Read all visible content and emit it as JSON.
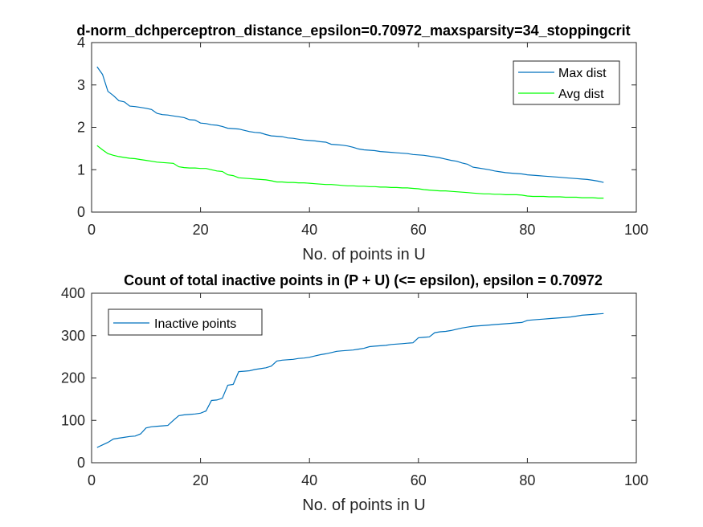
{
  "colors": {
    "max_dist": "#0072BD",
    "avg_dist": "#00FF00",
    "inactive": "#0072BD"
  },
  "chart_data": [
    {
      "type": "line",
      "title": "d-norm_dchperceptron_distance_epsilon=0.70972_maxsparsity=34_stoppingcrit",
      "xlabel": "No. of points in U",
      "ylabel": "",
      "xlim": [
        0,
        100
      ],
      "ylim": [
        0,
        4
      ],
      "xticks": [
        "0",
        "20",
        "40",
        "60",
        "80",
        "100"
      ],
      "yticks": [
        "0",
        "1",
        "2",
        "3",
        "4"
      ],
      "grid": false,
      "legend_position": "top-right",
      "x": [
        1,
        2,
        3,
        4,
        5,
        6,
        7,
        8,
        9,
        10,
        11,
        12,
        13,
        14,
        15,
        16,
        17,
        18,
        19,
        20,
        21,
        22,
        23,
        24,
        25,
        26,
        27,
        28,
        29,
        30,
        31,
        32,
        33,
        34,
        35,
        36,
        37,
        38,
        39,
        40,
        41,
        42,
        43,
        44,
        45,
        46,
        47,
        48,
        49,
        50,
        51,
        52,
        53,
        54,
        55,
        56,
        57,
        58,
        59,
        60,
        61,
        62,
        63,
        64,
        65,
        66,
        67,
        68,
        69,
        70,
        71,
        72,
        73,
        74,
        75,
        76,
        77,
        78,
        79,
        80,
        81,
        82,
        83,
        84,
        85,
        86,
        87,
        88,
        89,
        90,
        91,
        92,
        93,
        94
      ],
      "series": [
        {
          "name": "Max dist",
          "values": [
            3.43,
            3.25,
            2.85,
            2.75,
            2.63,
            2.6,
            2.5,
            2.49,
            2.47,
            2.45,
            2.42,
            2.33,
            2.3,
            2.29,
            2.27,
            2.25,
            2.23,
            2.18,
            2.17,
            2.1,
            2.09,
            2.06,
            2.05,
            2.02,
            1.98,
            1.97,
            1.96,
            1.93,
            1.9,
            1.88,
            1.87,
            1.83,
            1.8,
            1.79,
            1.78,
            1.75,
            1.74,
            1.72,
            1.7,
            1.69,
            1.68,
            1.66,
            1.65,
            1.6,
            1.59,
            1.58,
            1.56,
            1.53,
            1.49,
            1.47,
            1.46,
            1.45,
            1.43,
            1.42,
            1.41,
            1.4,
            1.39,
            1.38,
            1.36,
            1.35,
            1.34,
            1.32,
            1.3,
            1.28,
            1.25,
            1.22,
            1.2,
            1.16,
            1.13,
            1.06,
            1.04,
            1.02,
            1.0,
            0.97,
            0.95,
            0.93,
            0.92,
            0.91,
            0.9,
            0.88,
            0.87,
            0.86,
            0.85,
            0.84,
            0.83,
            0.82,
            0.81,
            0.8,
            0.79,
            0.78,
            0.77,
            0.75,
            0.73,
            0.7
          ]
        },
        {
          "name": "Avg dist",
          "values": [
            1.57,
            1.47,
            1.38,
            1.34,
            1.31,
            1.29,
            1.27,
            1.26,
            1.24,
            1.22,
            1.2,
            1.18,
            1.17,
            1.16,
            1.15,
            1.07,
            1.05,
            1.04,
            1.04,
            1.03,
            1.03,
            1.0,
            0.97,
            0.96,
            0.88,
            0.86,
            0.81,
            0.8,
            0.79,
            0.78,
            0.77,
            0.76,
            0.74,
            0.71,
            0.71,
            0.7,
            0.7,
            0.69,
            0.69,
            0.68,
            0.67,
            0.66,
            0.65,
            0.65,
            0.64,
            0.63,
            0.62,
            0.62,
            0.61,
            0.61,
            0.6,
            0.6,
            0.59,
            0.59,
            0.58,
            0.58,
            0.57,
            0.57,
            0.56,
            0.55,
            0.53,
            0.52,
            0.51,
            0.5,
            0.5,
            0.49,
            0.48,
            0.47,
            0.46,
            0.45,
            0.44,
            0.43,
            0.43,
            0.42,
            0.42,
            0.41,
            0.41,
            0.41,
            0.4,
            0.38,
            0.37,
            0.37,
            0.37,
            0.36,
            0.36,
            0.36,
            0.35,
            0.35,
            0.35,
            0.34,
            0.34,
            0.34,
            0.33,
            0.33
          ]
        }
      ]
    },
    {
      "type": "line",
      "title": "Count of total inactive points in (P + U) (<= epsilon), epsilon = 0.70972",
      "xlabel": "No. of points in U",
      "ylabel": "",
      "xlim": [
        0,
        100
      ],
      "ylim": [
        0,
        400
      ],
      "xticks": [
        "0",
        "20",
        "40",
        "60",
        "80",
        "100"
      ],
      "yticks": [
        "0",
        "100",
        "200",
        "300",
        "400"
      ],
      "grid": false,
      "legend_position": "top-left",
      "x": [
        1,
        2,
        3,
        4,
        5,
        6,
        7,
        8,
        9,
        10,
        11,
        12,
        13,
        14,
        15,
        16,
        17,
        18,
        19,
        20,
        21,
        22,
        23,
        24,
        25,
        26,
        27,
        28,
        29,
        30,
        31,
        32,
        33,
        34,
        35,
        36,
        37,
        38,
        39,
        40,
        41,
        42,
        43,
        44,
        45,
        46,
        47,
        48,
        49,
        50,
        51,
        52,
        53,
        54,
        55,
        56,
        57,
        58,
        59,
        60,
        61,
        62,
        63,
        64,
        65,
        66,
        67,
        68,
        69,
        70,
        71,
        72,
        73,
        74,
        75,
        76,
        77,
        78,
        79,
        80,
        81,
        82,
        83,
        84,
        85,
        86,
        87,
        88,
        89,
        90,
        91,
        92,
        93,
        94
      ],
      "series": [
        {
          "name": "Inactive points",
          "values": [
            36,
            42,
            48,
            56,
            58,
            60,
            62,
            63,
            68,
            82,
            85,
            86,
            87,
            88,
            100,
            111,
            113,
            114,
            115,
            117,
            122,
            147,
            148,
            152,
            183,
            185,
            215,
            216,
            217,
            220,
            222,
            224,
            228,
            240,
            242,
            243,
            244,
            246,
            247,
            249,
            252,
            255,
            257,
            260,
            263,
            264,
            265,
            266,
            268,
            270,
            274,
            275,
            276,
            277,
            279,
            280,
            281,
            282,
            283,
            295,
            296,
            297,
            307,
            309,
            310,
            312,
            315,
            318,
            320,
            322,
            323,
            324,
            325,
            326,
            327,
            328,
            329,
            330,
            331,
            336,
            337,
            338,
            339,
            340,
            341,
            342,
            343,
            344,
            346,
            348,
            349,
            350,
            351,
            352
          ]
        }
      ]
    }
  ]
}
